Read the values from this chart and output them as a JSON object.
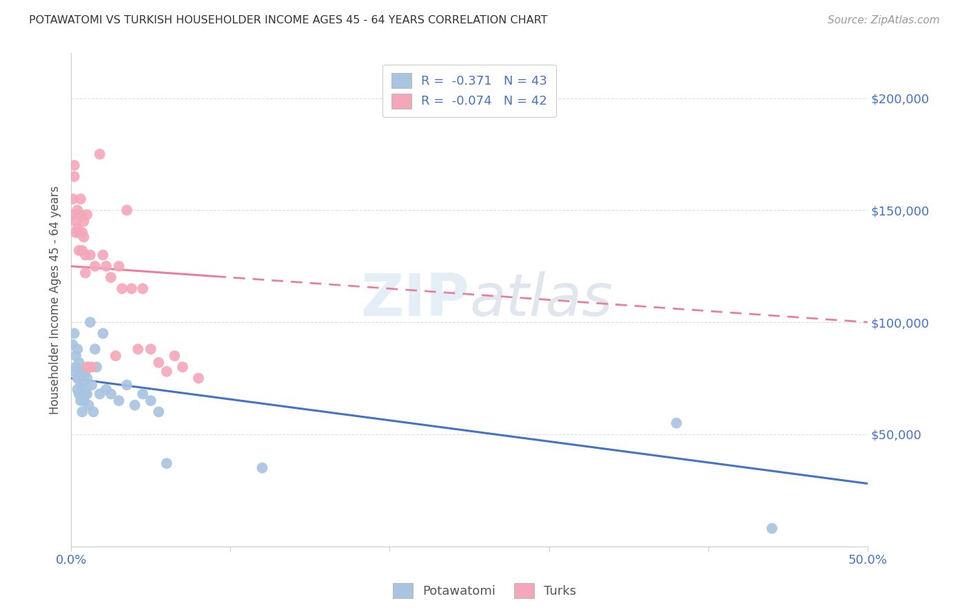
{
  "title": "POTAWATOMI VS TURKISH HOUSEHOLDER INCOME AGES 45 - 64 YEARS CORRELATION CHART",
  "source": "Source: ZipAtlas.com",
  "ylabel": "Householder Income Ages 45 - 64 years",
  "watermark": "ZIPatlas",
  "xlim": [
    0.0,
    0.5
  ],
  "ylim": [
    0,
    220000
  ],
  "yticks": [
    0,
    50000,
    100000,
    150000,
    200000
  ],
  "ytick_labels": [
    "",
    "$50,000",
    "$100,000",
    "$150,000",
    "$200,000"
  ],
  "blue_color": "#a8c4e0",
  "pink_color": "#f4a7b9",
  "blue_line_color": "#4472c4",
  "pink_line_color": "#e8809a",
  "grid_color": "#dddddd",
  "potawatomi_x": [
    0.001,
    0.002,
    0.002,
    0.003,
    0.003,
    0.004,
    0.004,
    0.004,
    0.005,
    0.005,
    0.005,
    0.006,
    0.006,
    0.006,
    0.007,
    0.007,
    0.007,
    0.008,
    0.008,
    0.009,
    0.009,
    0.01,
    0.01,
    0.011,
    0.012,
    0.013,
    0.014,
    0.015,
    0.016,
    0.018,
    0.02,
    0.022,
    0.025,
    0.03,
    0.035,
    0.04,
    0.045,
    0.05,
    0.055,
    0.06,
    0.12,
    0.38,
    0.44
  ],
  "potawatomi_y": [
    90000,
    95000,
    78000,
    85000,
    80000,
    88000,
    75000,
    70000,
    82000,
    75000,
    68000,
    78000,
    72000,
    65000,
    74000,
    68000,
    60000,
    72000,
    65000,
    78000,
    68000,
    75000,
    68000,
    63000,
    100000,
    72000,
    60000,
    88000,
    80000,
    68000,
    95000,
    70000,
    68000,
    65000,
    72000,
    63000,
    68000,
    65000,
    60000,
    37000,
    35000,
    55000,
    8000
  ],
  "turks_x": [
    0.001,
    0.001,
    0.002,
    0.002,
    0.003,
    0.003,
    0.004,
    0.004,
    0.005,
    0.005,
    0.005,
    0.006,
    0.006,
    0.007,
    0.007,
    0.008,
    0.008,
    0.009,
    0.009,
    0.01,
    0.01,
    0.011,
    0.012,
    0.013,
    0.015,
    0.018,
    0.02,
    0.022,
    0.025,
    0.028,
    0.03,
    0.032,
    0.035,
    0.038,
    0.042,
    0.045,
    0.05,
    0.055,
    0.06,
    0.065,
    0.07,
    0.08
  ],
  "turks_y": [
    155000,
    148000,
    170000,
    165000,
    145000,
    140000,
    150000,
    142000,
    148000,
    140000,
    132000,
    155000,
    148000,
    140000,
    132000,
    145000,
    138000,
    130000,
    122000,
    148000,
    80000,
    80000,
    130000,
    80000,
    125000,
    175000,
    130000,
    125000,
    120000,
    85000,
    125000,
    115000,
    150000,
    115000,
    88000,
    115000,
    88000,
    82000,
    78000,
    85000,
    80000,
    75000
  ],
  "blue_line_x0": 0.0,
  "blue_line_y0": 75000,
  "blue_line_x1": 0.5,
  "blue_line_y1": 28000,
  "pink_line_x0": 0.0,
  "pink_line_y0": 125000,
  "pink_line_x1": 0.5,
  "pink_line_y1": 100000
}
